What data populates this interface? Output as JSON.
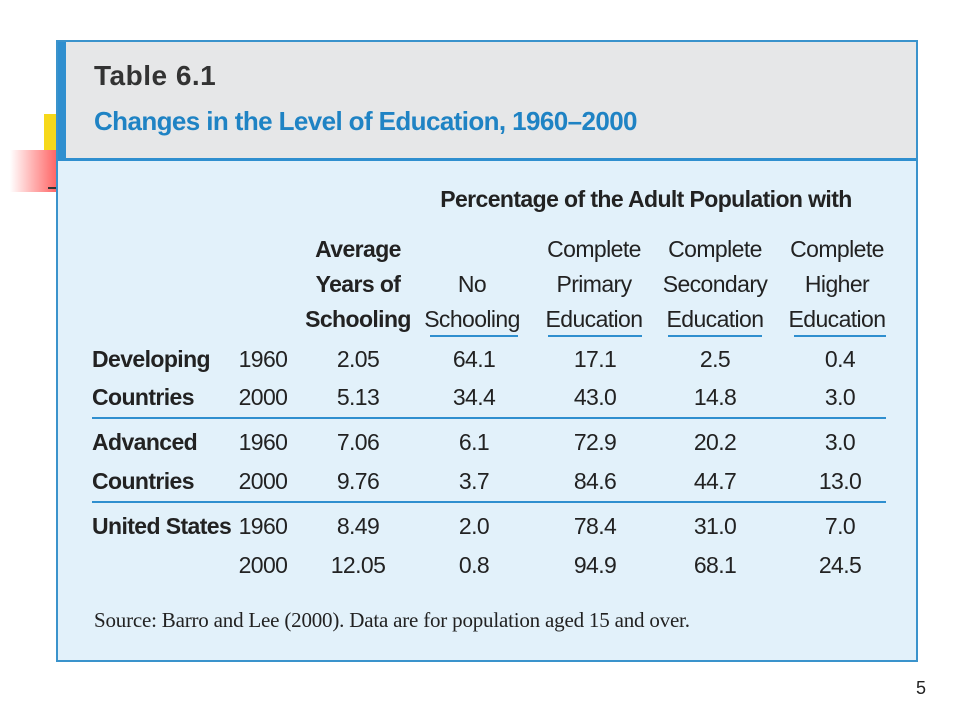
{
  "table_label": "Table 6.1",
  "table_title": "Changes in the Level of Education, 1960–2000",
  "group_header": "Percentage of the Adult Population with",
  "columns": {
    "avg_years": [
      "Average",
      "Years of",
      "Schooling"
    ],
    "no_schooling": [
      "No",
      "Schooling"
    ],
    "primary": [
      "Complete",
      "Primary",
      "Education"
    ],
    "secondary": [
      "Complete",
      "Secondary",
      "Education"
    ],
    "higher": [
      "Complete",
      "Higher",
      "Education"
    ]
  },
  "groups": [
    {
      "name_lines": [
        "Developing",
        "Countries"
      ],
      "rows": [
        {
          "year": "1960",
          "avg_years": "2.05",
          "no_schooling": "64.1",
          "primary": "17.1",
          "secondary": "2.5",
          "higher": "0.4"
        },
        {
          "year": "2000",
          "avg_years": "5.13",
          "no_schooling": "34.4",
          "primary": "43.0",
          "secondary": "14.8",
          "higher": "3.0"
        }
      ]
    },
    {
      "name_lines": [
        "Advanced",
        "Countries"
      ],
      "rows": [
        {
          "year": "1960",
          "avg_years": "7.06",
          "no_schooling": "6.1",
          "primary": "72.9",
          "secondary": "20.2",
          "higher": "3.0"
        },
        {
          "year": "2000",
          "avg_years": "9.76",
          "no_schooling": "3.7",
          "primary": "84.6",
          "secondary": "44.7",
          "higher": "13.0"
        }
      ]
    },
    {
      "name_lines": [
        "United States",
        ""
      ],
      "rows": [
        {
          "year": "1960",
          "avg_years": "8.49",
          "no_schooling": "2.0",
          "primary": "78.4",
          "secondary": "31.0",
          "higher": "7.0"
        },
        {
          "year": "2000",
          "avg_years": "12.05",
          "no_schooling": "0.8",
          "primary": "94.9",
          "secondary": "68.1",
          "higher": "24.5"
        }
      ]
    }
  ],
  "source": "Source: Barro and Lee (2000). Data are for population aged 15 and over.",
  "page_number": "5",
  "colors": {
    "accent": "#2f8fcf",
    "panel": "#e2f1fa",
    "header": "#e6e7e8",
    "title": "#1f83c4"
  }
}
